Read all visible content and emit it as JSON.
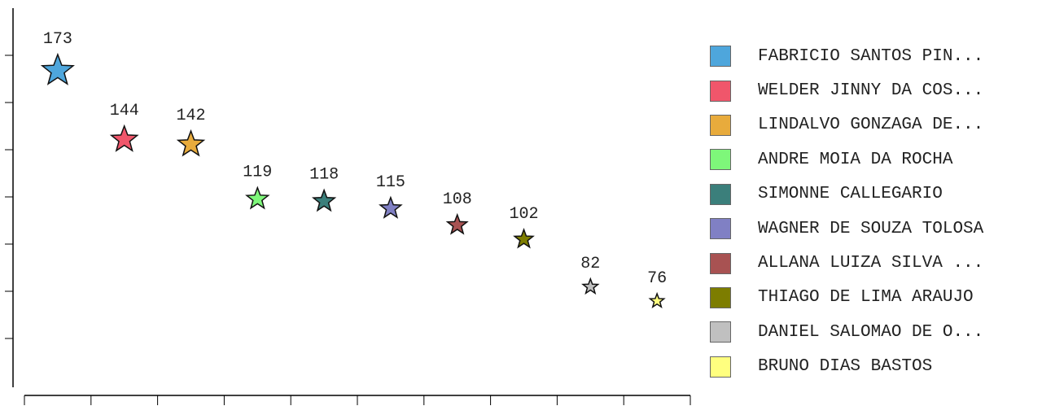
{
  "chart_data": {
    "type": "scatter",
    "marker": "star",
    "title": "",
    "xlabel": "",
    "ylabel": "",
    "grid": false,
    "legend_position": "right",
    "categories": [
      "FABRICIO SANTOS PIN...",
      "WELDER JINNY DA COS...",
      "LINDALVO GONZAGA DE...",
      "ANDRE MOIA DA ROCHA",
      "SIMONNE CALLEGARIO",
      "WAGNER DE SOUZA TOLOSA",
      "ALLANA LUIZA SILVA ...",
      "THIAGO DE LIMA ARAUJO",
      "DANIEL SALOMAO DE O...",
      "BRUNO DIAS BASTOS"
    ],
    "values": [
      173,
      144,
      142,
      119,
      118,
      115,
      108,
      102,
      82,
      76
    ],
    "data_labels": [
      "173",
      "144",
      "142",
      "119",
      "118",
      "115",
      "108",
      "102",
      "82",
      "76"
    ],
    "colors": [
      "#4ea6dc",
      "#f0566b",
      "#e8ab3c",
      "#7ef77a",
      "#3b7f7b",
      "#8080c4",
      "#a85252",
      "#7d7d00",
      "#c0c0c0",
      "#ffff7f"
    ]
  }
}
